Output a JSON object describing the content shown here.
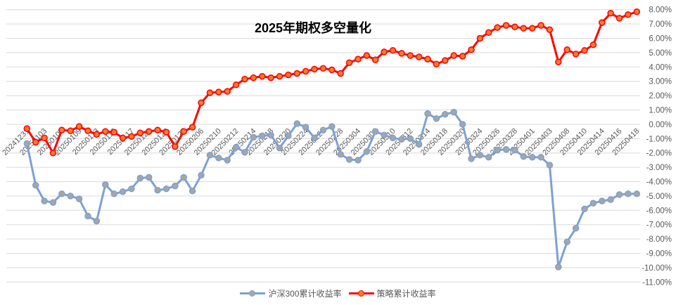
{
  "title": "2025年期权多空量化",
  "legend": [
    {
      "label": "沪深300累计收益率",
      "line_color": "#7CA1D4",
      "marker_color": "#A6A6A6"
    },
    {
      "label": "策略累计收益率",
      "line_color": "#FF0000",
      "marker_color": "#ED7D31"
    }
  ],
  "colors": {
    "gridline": "#D9D9D9",
    "axis_text": "#595959",
    "background": "#FFFFFF",
    "csi300_line": "#7CA1D4",
    "csi300_marker": "#A6A6A6",
    "strategy_line": "#FF0000",
    "strategy_marker": "#ED7D31"
  },
  "y_axis": {
    "tick_labels": [
      "8.00%",
      "7.00%",
      "6.00%",
      "5.00%",
      "4.00%",
      "3.00%",
      "2.00%",
      "1.00%",
      "0.00%",
      "-1.00%",
      "-2.00%",
      "-3.00%",
      "-4.00%",
      "-5.00%",
      "-6.00%",
      "-7.00%",
      "-8.00%",
      "-9.00%",
      "-10.00%",
      "-11.00%"
    ]
  },
  "chart_data": {
    "type": "line",
    "title": "2025年期权多空量化",
    "xlabel": "",
    "ylabel": "",
    "ylim": [
      -11,
      8
    ],
    "y_step": 1,
    "y_tick_format": "percent",
    "grid": true,
    "legend_position": "bottom",
    "x": [
      "20241231",
      "20250102",
      "20250103",
      "20250106",
      "20250107",
      "20250108",
      "20250109",
      "20250110",
      "20250113",
      "20250114",
      "20250115",
      "20250116",
      "20250117",
      "20250120",
      "20250121",
      "20250122",
      "20250123",
      "20250124",
      "20250127",
      "20250205",
      "20250206",
      "20250207",
      "20250210",
      "20250211",
      "20250212",
      "20250213",
      "20250214",
      "20250217",
      "20250218",
      "20250219",
      "20250220",
      "20250221",
      "20250224",
      "20250225",
      "20250226",
      "20250227",
      "20250228",
      "20250303",
      "20250304",
      "20250305",
      "20250306",
      "20250307",
      "20250310",
      "20250311",
      "20250312",
      "20250313",
      "20250314",
      "20250317",
      "20250318",
      "20250319",
      "20250320",
      "20250321",
      "20250324",
      "20250325",
      "20250326",
      "20250327",
      "20250328",
      "20250331",
      "20250401",
      "20250402",
      "20250403",
      "20250407",
      "20250408",
      "20250409",
      "20250410",
      "20250411",
      "20250414",
      "20250415",
      "20250416",
      "20250417",
      "20250418"
    ],
    "x_tick_labels": [
      "20241231",
      "20250103",
      "20250107",
      "20250109",
      "20250113",
      "20250115",
      "20250117",
      "20250121",
      "20250123",
      "20250127",
      "20250206",
      "20250210",
      "20250212",
      "20250214",
      "20250218",
      "20250220",
      "20250224",
      "20250226",
      "20250228",
      "20250304",
      "20250306",
      "20250310",
      "20250312",
      "20250314",
      "20250318",
      "20250320",
      "20250324",
      "20250326",
      "20250328",
      "20250401",
      "20250403",
      "20250408",
      "20250410",
      "20250414",
      "20250416",
      "20250418"
    ],
    "x_tick_every": 2,
    "series": [
      {
        "name": "沪深300累计收益率",
        "unit": "%",
        "values": [
          -1.35,
          -4.25,
          -5.35,
          -5.45,
          -4.85,
          -5.0,
          -5.2,
          -6.4,
          -6.75,
          -4.2,
          -4.85,
          -4.7,
          -4.5,
          -3.75,
          -3.7,
          -4.6,
          -4.5,
          -4.3,
          -3.7,
          -4.65,
          -3.55,
          -2.15,
          -2.35,
          -2.5,
          -1.6,
          -1.95,
          -0.9,
          -0.8,
          -0.75,
          -1.65,
          -0.8,
          0.05,
          -0.2,
          -0.95,
          -0.4,
          -0.15,
          -2.1,
          -2.45,
          -2.5,
          -1.9,
          -0.5,
          -0.75,
          -0.95,
          -1.05,
          -1.0,
          -1.4,
          0.75,
          0.4,
          0.7,
          0.85,
          0.0,
          -2.4,
          -2.15,
          -2.3,
          -1.8,
          -1.75,
          -1.8,
          -2.25,
          -2.3,
          -2.3,
          -2.85,
          -9.95,
          -8.2,
          -7.25,
          -5.9,
          -5.5,
          -5.35,
          -5.25,
          -4.9,
          -4.85,
          -4.85
        ]
      },
      {
        "name": "策略累计收益率",
        "unit": "%",
        "values": [
          -0.3,
          -1.25,
          -0.95,
          -2.0,
          -0.4,
          -0.45,
          -0.15,
          -0.45,
          -0.7,
          -0.5,
          -0.55,
          -0.95,
          -0.85,
          -0.6,
          -0.5,
          -0.4,
          -0.55,
          -1.55,
          -0.5,
          -0.2,
          1.5,
          2.2,
          2.25,
          2.3,
          2.75,
          3.15,
          3.25,
          3.35,
          3.25,
          3.35,
          3.45,
          3.55,
          3.7,
          3.85,
          3.9,
          3.8,
          3.55,
          4.3,
          4.55,
          4.8,
          4.5,
          5.05,
          5.15,
          4.95,
          4.8,
          4.7,
          4.55,
          4.2,
          4.45,
          4.8,
          4.75,
          5.2,
          6.0,
          6.4,
          6.75,
          6.9,
          6.8,
          6.7,
          6.7,
          6.9,
          6.6,
          4.35,
          5.2,
          4.9,
          5.15,
          5.55,
          7.1,
          7.75,
          7.4,
          7.65,
          7.85
        ]
      }
    ]
  }
}
